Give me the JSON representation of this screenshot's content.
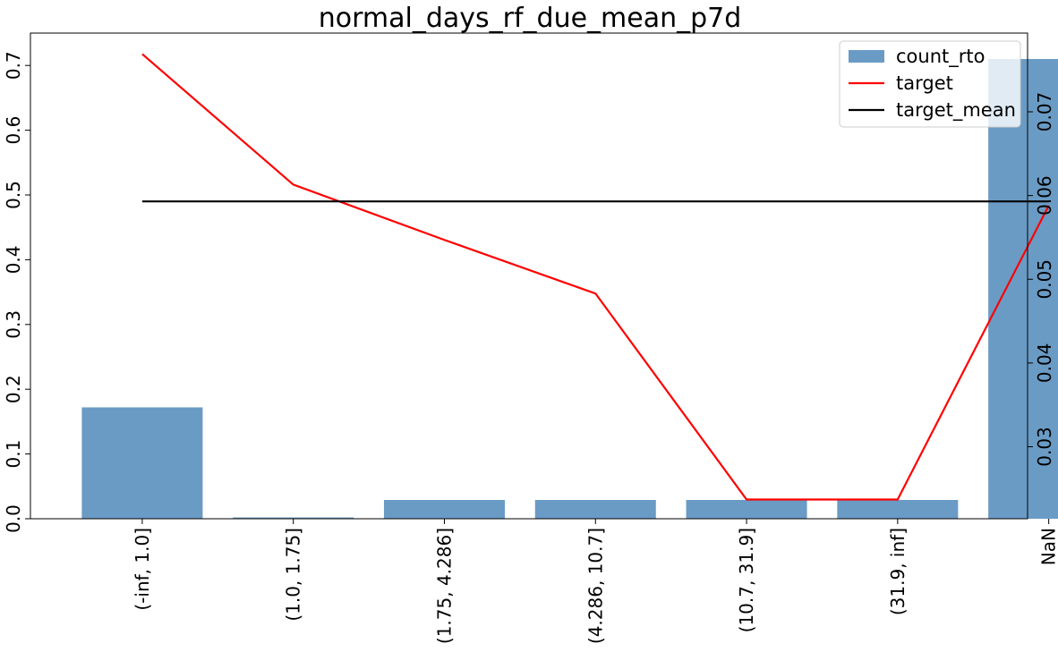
{
  "chart_data": {
    "type": "bar",
    "title": "normal_days_rf_due_mean_p7d",
    "categories": [
      "(-inf, 1.0]",
      "(1.0, 1.75]",
      "(1.75, 4.286]",
      "(4.286, 10.7]",
      "(10.7, 31.9]",
      "(31.9, inf]",
      "NaN"
    ],
    "series": [
      {
        "name": "count_rto",
        "kind": "bar",
        "axis": "left",
        "color": "#6a9bc5",
        "values": [
          0.172,
          0.002,
          0.029,
          0.029,
          0.029,
          0.029,
          0.71
        ]
      },
      {
        "name": "target",
        "kind": "line",
        "axis": "right",
        "color": "#ff0000",
        "values": [
          0.0769,
          0.0613,
          0.0547,
          0.0483,
          0.0237,
          0.0237,
          0.0588
        ]
      },
      {
        "name": "target_mean",
        "kind": "line",
        "axis": "right",
        "color": "#000000",
        "values": [
          0.0593,
          0.0593,
          0.0593,
          0.0593,
          0.0593,
          0.0593,
          0.0593
        ]
      }
    ],
    "y_left": {
      "lim": [
        0,
        0.75
      ],
      "ticks": [
        "0.0",
        "0.1",
        "0.2",
        "0.3",
        "0.4",
        "0.5",
        "0.6",
        "0.7"
      ]
    },
    "y_right": {
      "lim": [
        0.0214,
        0.0794
      ],
      "ticks": [
        "0.03",
        "0.04",
        "0.05",
        "0.06",
        "0.07"
      ]
    },
    "legend": {
      "position": "top-right",
      "entries": [
        "count_rto",
        "target",
        "target_mean"
      ]
    },
    "grid": false
  }
}
